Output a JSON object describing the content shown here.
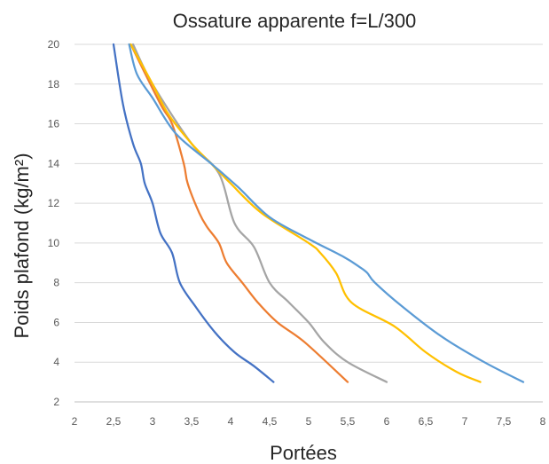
{
  "chart_data": {
    "type": "line",
    "title": "Ossature apparente f=L/300",
    "xlabel": "Portées",
    "ylabel": "Poids plafond (kg/m²)",
    "xlim": [
      2,
      8
    ],
    "ylim": [
      2,
      20
    ],
    "x_ticks": [
      2,
      2.5,
      3,
      3.5,
      4,
      4.5,
      5,
      5.5,
      6,
      6.5,
      7,
      7.5,
      8
    ],
    "x_tick_labels": [
      "2",
      "2,5",
      "3",
      "3,5",
      "4",
      "4,5",
      "5",
      "5,5",
      "6",
      "6,5",
      "7",
      "7,5",
      "8"
    ],
    "y_ticks": [
      2,
      4,
      6,
      8,
      10,
      12,
      14,
      16,
      18,
      20
    ],
    "y_tick_labels": [
      "2",
      "4",
      "6",
      "8",
      "10",
      "12",
      "14",
      "16",
      "18",
      "20"
    ],
    "grid": "horizontal",
    "legend": "none",
    "series": [
      {
        "color": "#4472C4",
        "x": [
          2.5,
          2.62,
          2.75,
          2.85,
          2.9,
          3.0,
          3.1,
          3.25,
          3.35,
          3.55,
          3.8,
          4.05,
          4.3,
          4.55
        ],
        "y": [
          20,
          17,
          15,
          14,
          13,
          12,
          10.5,
          9.5,
          8,
          6.8,
          5.5,
          4.5,
          3.8,
          3
        ]
      },
      {
        "color": "#ED7D31",
        "x": [
          2.72,
          3.1,
          3.25,
          3.4,
          3.45,
          3.6,
          3.7,
          3.85,
          3.95,
          4.15,
          4.35,
          4.6,
          4.95,
          5.5
        ],
        "y": [
          20,
          17,
          16,
          14,
          13,
          11.5,
          10.8,
          10,
          9,
          8,
          7,
          6,
          5,
          3
        ]
      },
      {
        "color": "#A5A5A5",
        "x": [
          2.75,
          3.0,
          3.5,
          3.85,
          4.05,
          4.3,
          4.5,
          4.75,
          5.0,
          5.2,
          5.5,
          6.0
        ],
        "y": [
          20,
          18,
          15,
          13.5,
          11,
          9.8,
          8,
          7,
          6,
          5,
          4,
          3
        ]
      },
      {
        "color": "#FFC000",
        "x": [
          2.72,
          3.0,
          3.2,
          3.5,
          3.75,
          4.0,
          4.4,
          5.0,
          5.15,
          5.35,
          5.55,
          6.1,
          6.5,
          6.9,
          7.2
        ],
        "y": [
          20,
          18,
          16.5,
          15,
          14,
          13,
          11.5,
          10,
          9.5,
          8.5,
          7,
          5.8,
          4.5,
          3.5,
          3
        ]
      },
      {
        "color": "#5B9BD5",
        "x": [
          2.7,
          2.8,
          3.0,
          3.3,
          3.75,
          4.1,
          4.5,
          5.0,
          5.45,
          5.65,
          5.75,
          5.85,
          6.2,
          6.7,
          7.25,
          7.75
        ],
        "y": [
          20,
          18.5,
          17.3,
          15.5,
          14,
          12.8,
          11.3,
          10.2,
          9.3,
          8.8,
          8.5,
          8,
          6.8,
          5.3,
          4,
          3
        ]
      }
    ]
  }
}
